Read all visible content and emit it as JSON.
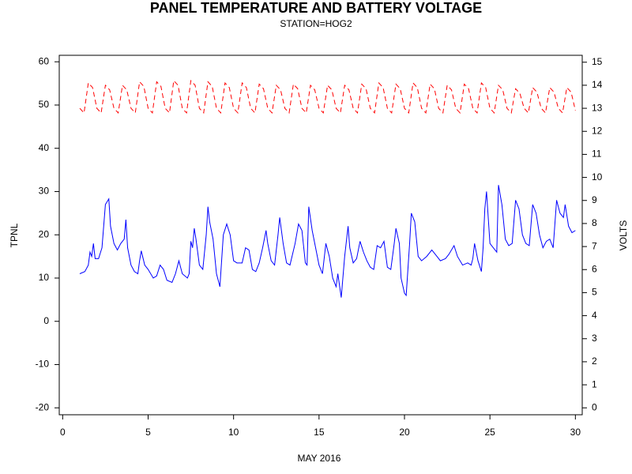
{
  "chart_data": {
    "type": "line",
    "title": "PANEL TEMPERATURE AND BATTERY VOLTAGE",
    "subtitle": "STATION=HOG2",
    "x_label": "MAY 2016",
    "y_label": "TPNL",
    "y2_label": "VOLTS",
    "xlim": [
      -0.2,
      30.4
    ],
    "xticks": [
      0,
      5,
      10,
      15,
      20,
      25,
      30
    ],
    "ylim": [
      -21.6,
      61.5
    ],
    "yticks": [
      -20,
      -10,
      0,
      10,
      20,
      30,
      40,
      50,
      60
    ],
    "y2lim": [
      -0.3,
      15.3
    ],
    "y2ticks": [
      0,
      1,
      2,
      3,
      4,
      5,
      6,
      7,
      8,
      9,
      10,
      11,
      12,
      13,
      14,
      15
    ],
    "grid": false,
    "series": [
      {
        "color": "#0000ff",
        "dash": false,
        "x": [
          1.0,
          1.3,
          1.5,
          1.6,
          1.7,
          1.8,
          1.9,
          2.1,
          2.3,
          2.5,
          2.7,
          2.8,
          3.0,
          3.2,
          3.4,
          3.6,
          3.7,
          3.8,
          4.0,
          4.2,
          4.4,
          4.5,
          4.6,
          4.8,
          5.0,
          5.3,
          5.5,
          5.7,
          5.9,
          6.1,
          6.4,
          6.6,
          6.8,
          7.0,
          7.3,
          7.4,
          7.5,
          7.6,
          7.7,
          7.8,
          8.0,
          8.2,
          8.4,
          8.5,
          8.6,
          8.8,
          9.0,
          9.2,
          9.4,
          9.6,
          9.8,
          10.0,
          10.2,
          10.5,
          10.7,
          10.9,
          11.1,
          11.3,
          11.5,
          11.7,
          11.9,
          12.0,
          12.2,
          12.4,
          12.6,
          12.7,
          12.9,
          13.1,
          13.3,
          13.6,
          13.8,
          14.0,
          14.2,
          14.3,
          14.4,
          14.6,
          14.8,
          15.0,
          15.2,
          15.4,
          15.6,
          15.8,
          16.0,
          16.1,
          16.3,
          16.5,
          16.7,
          16.8,
          17.0,
          17.2,
          17.4,
          17.6,
          17.8,
          18.0,
          18.2,
          18.4,
          18.6,
          18.8,
          19.0,
          19.2,
          19.4,
          19.5,
          19.7,
          19.8,
          20.0,
          20.1,
          20.3,
          20.4,
          20.6,
          20.8,
          21.0,
          21.3,
          21.6,
          21.9,
          22.1,
          22.4,
          22.6,
          22.9,
          23.1,
          23.4,
          23.7,
          23.9,
          24.0,
          24.1,
          24.3,
          24.5,
          24.6,
          24.7,
          24.8,
          25.0,
          25.2,
          25.4,
          25.5,
          25.7,
          25.9,
          26.1,
          26.3,
          26.5,
          26.7,
          26.9,
          27.1,
          27.3,
          27.5,
          27.7,
          27.9,
          28.1,
          28.3,
          28.5,
          28.7,
          28.9,
          29.1,
          29.3,
          29.4,
          29.6,
          29.8,
          30.0
        ],
        "values": [
          11,
          11.5,
          13,
          16,
          15,
          18,
          14.5,
          14.5,
          17,
          27,
          28.3,
          22,
          18,
          16.5,
          18,
          19,
          23.5,
          17,
          13,
          11.5,
          11,
          14,
          16.3,
          13,
          12,
          10,
          10.5,
          13,
          12,
          9.5,
          9,
          11,
          14,
          11,
          10,
          11,
          18.5,
          17,
          21.5,
          19,
          13,
          12,
          20,
          26.5,
          23,
          19,
          11,
          8,
          20,
          22.5,
          20,
          14,
          13.5,
          13.5,
          17,
          16.5,
          12,
          11.5,
          13.5,
          17,
          21,
          18,
          14,
          13,
          20,
          24,
          18,
          13.5,
          13,
          18,
          22.5,
          21,
          13.5,
          13,
          26.5,
          21,
          17,
          13,
          11,
          18,
          15,
          10,
          8,
          11,
          5.5,
          15,
          22,
          17,
          13.5,
          14.5,
          18.5,
          16,
          14,
          12.5,
          12,
          17.5,
          17,
          18.5,
          12.5,
          12,
          18,
          21.5,
          18,
          10,
          6.5,
          6,
          18,
          25,
          23,
          15,
          14,
          15,
          16.5,
          15,
          14,
          14.5,
          15.5,
          17.5,
          15,
          13,
          13.5,
          13,
          14.5,
          18,
          14,
          11.5,
          17,
          26,
          30,
          18,
          17,
          16,
          31.5,
          27,
          19,
          17.5,
          18,
          28,
          26,
          20,
          18,
          17.5,
          27,
          25,
          20,
          17,
          18.5,
          19,
          17,
          28,
          25,
          24,
          27,
          22,
          20.5,
          21
        ]
      },
      {
        "color": "#ff0000",
        "dash": true,
        "axis": "y2",
        "x": [
          1,
          1.25,
          1.5,
          1.75,
          2,
          2.25,
          2.5,
          2.75,
          3,
          3.25,
          3.5,
          3.75,
          4,
          4.25,
          4.5,
          4.75,
          5,
          5.25,
          5.5,
          5.75,
          6,
          6.25,
          6.5,
          6.75,
          7,
          7.25,
          7.5,
          7.75,
          8,
          8.25,
          8.5,
          8.75,
          9,
          9.25,
          9.5,
          9.75,
          10,
          10.25,
          10.5,
          10.75,
          11,
          11.25,
          11.5,
          11.75,
          12,
          12.25,
          12.5,
          12.75,
          13,
          13.25,
          13.5,
          13.75,
          14,
          14.25,
          14.5,
          14.75,
          15,
          15.25,
          15.5,
          15.75,
          16,
          16.25,
          16.5,
          16.75,
          17,
          17.25,
          17.5,
          17.75,
          18,
          18.25,
          18.5,
          18.75,
          19,
          19.25,
          19.5,
          19.75,
          20,
          20.25,
          20.5,
          20.75,
          21,
          21.25,
          21.5,
          21.75,
          22,
          22.25,
          22.5,
          22.75,
          23,
          23.25,
          23.5,
          23.75,
          24,
          24.25,
          24.5,
          24.75,
          25,
          25.25,
          25.5,
          25.75,
          26,
          26.25,
          26.5,
          26.75,
          27,
          27.25,
          27.5,
          27.75,
          28,
          28.25,
          28.5,
          28.75,
          29,
          29.25,
          29.5,
          29.75,
          30
        ],
        "values": [
          13.0,
          12.8,
          14.1,
          13.9,
          13.0,
          12.8,
          14.0,
          13.8,
          13.0,
          12.8,
          14.0,
          13.8,
          13.0,
          12.8,
          14.15,
          13.95,
          13.0,
          12.8,
          14.15,
          13.95,
          13.0,
          12.8,
          14.2,
          14.0,
          13.0,
          12.8,
          14.2,
          14.0,
          13.0,
          12.8,
          14.15,
          13.95,
          13.0,
          12.8,
          14.1,
          13.9,
          13.0,
          12.8,
          14.1,
          13.9,
          13.0,
          12.8,
          14.05,
          13.85,
          13.0,
          12.8,
          14.0,
          13.8,
          13.0,
          12.8,
          14.05,
          13.85,
          13.0,
          12.8,
          14.0,
          13.8,
          13.0,
          12.8,
          14.0,
          13.8,
          13.0,
          12.8,
          14.0,
          13.8,
          13.0,
          12.8,
          14.05,
          13.85,
          13.0,
          12.8,
          14.1,
          13.9,
          13.0,
          12.8,
          14.05,
          13.85,
          13.0,
          12.8,
          14.1,
          13.9,
          13.0,
          12.8,
          14.05,
          13.85,
          13.0,
          12.8,
          14.0,
          13.8,
          13.0,
          12.8,
          14.05,
          13.85,
          13.0,
          12.8,
          14.1,
          13.9,
          13.0,
          12.8,
          14.0,
          13.8,
          13.0,
          12.8,
          13.85,
          13.65,
          13.0,
          12.8,
          13.9,
          13.7,
          13.0,
          12.8,
          13.9,
          13.7,
          13.0,
          12.8,
          13.9,
          13.7,
          12.9
        ]
      }
    ]
  }
}
